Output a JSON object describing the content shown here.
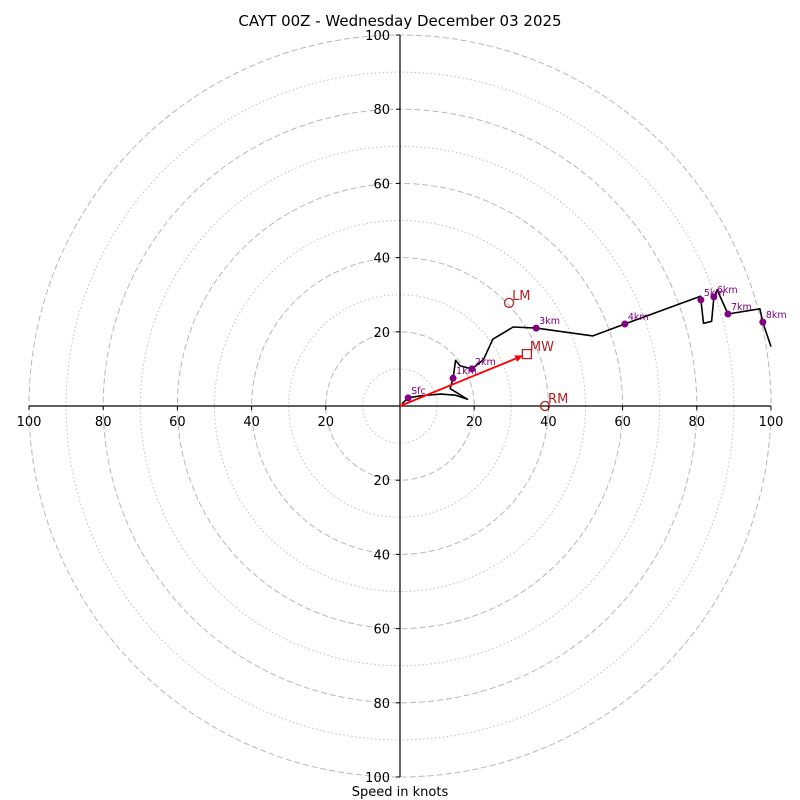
{
  "chart_data": {
    "type": "hodograph",
    "title": "CAYT 00Z - Wednesday December 03 2025",
    "xlabel": "Speed in knots",
    "rlim": [
      0,
      100
    ],
    "major_rings": [
      20,
      40,
      60,
      80,
      100
    ],
    "minor_rings": [
      10,
      30,
      50,
      70,
      90
    ],
    "tick_labels": {
      "x_positive": [
        "20",
        "40",
        "60",
        "80",
        "100"
      ],
      "x_negative": [
        "100",
        "80",
        "60",
        "40",
        "20"
      ],
      "y_positive": [
        "20",
        "40",
        "60",
        "80",
        "100"
      ],
      "y_negative": [
        "20",
        "40",
        "60",
        "80",
        "100"
      ]
    },
    "trace": [
      [
        0.5,
        0.6
      ],
      [
        2.2,
        2.2
      ],
      [
        6,
        2.8
      ],
      [
        11,
        3.2
      ],
      [
        15,
        2.9
      ],
      [
        18.2,
        1.8
      ],
      [
        13.5,
        4.7
      ],
      [
        14.3,
        7.5
      ],
      [
        15,
        12.3
      ],
      [
        16.2,
        10.8
      ],
      [
        19.4,
        10.0
      ],
      [
        22.5,
        12.5
      ],
      [
        25,
        18
      ],
      [
        30.5,
        21.3
      ],
      [
        36.7,
        21.0
      ],
      [
        52,
        18.9
      ],
      [
        60.6,
        22.1
      ],
      [
        81,
        29.6
      ],
      [
        81.1,
        28.6
      ],
      [
        81.8,
        22.3
      ],
      [
        84,
        22.8
      ],
      [
        84.6,
        29.4
      ],
      [
        85.5,
        31.3
      ],
      [
        88.4,
        24.8
      ],
      [
        97,
        26.2
      ],
      [
        97.8,
        22.6
      ],
      [
        100,
        16
      ]
    ],
    "color_trace": "#000000",
    "height_markers": [
      {
        "label": "Sfc",
        "u": 2.2,
        "v": 2.2
      },
      {
        "label": "1km",
        "u": 14.3,
        "v": 7.5
      },
      {
        "label": "2km",
        "u": 19.4,
        "v": 10.0
      },
      {
        "label": "3km",
        "u": 36.7,
        "v": 21.0
      },
      {
        "label": "4km",
        "u": 60.6,
        "v": 22.1
      },
      {
        "label": "5km",
        "u": 81.1,
        "v": 28.6
      },
      {
        "label": "6km",
        "u": 84.6,
        "v": 29.4
      },
      {
        "label": "7km",
        "u": 88.4,
        "v": 24.8
      },
      {
        "label": "8km",
        "u": 97.8,
        "v": 22.6
      }
    ],
    "color_markers": "#800080",
    "storm_motion": {
      "LM": {
        "label": "LM",
        "u": 29.4,
        "v": 27.8,
        "shape": "circle"
      },
      "MW": {
        "label": "MW",
        "u": 34.2,
        "v": 14.0,
        "shape": "square"
      },
      "RM": {
        "label": "RM",
        "u": 39.1,
        "v": 0.0,
        "shape": "circle"
      }
    },
    "mean_wind_vector": {
      "from": [
        0,
        0
      ],
      "to": [
        33.2,
        13.6
      ]
    },
    "color_storm": "#b22222",
    "color_vector": "#ff0000",
    "grid": true
  }
}
